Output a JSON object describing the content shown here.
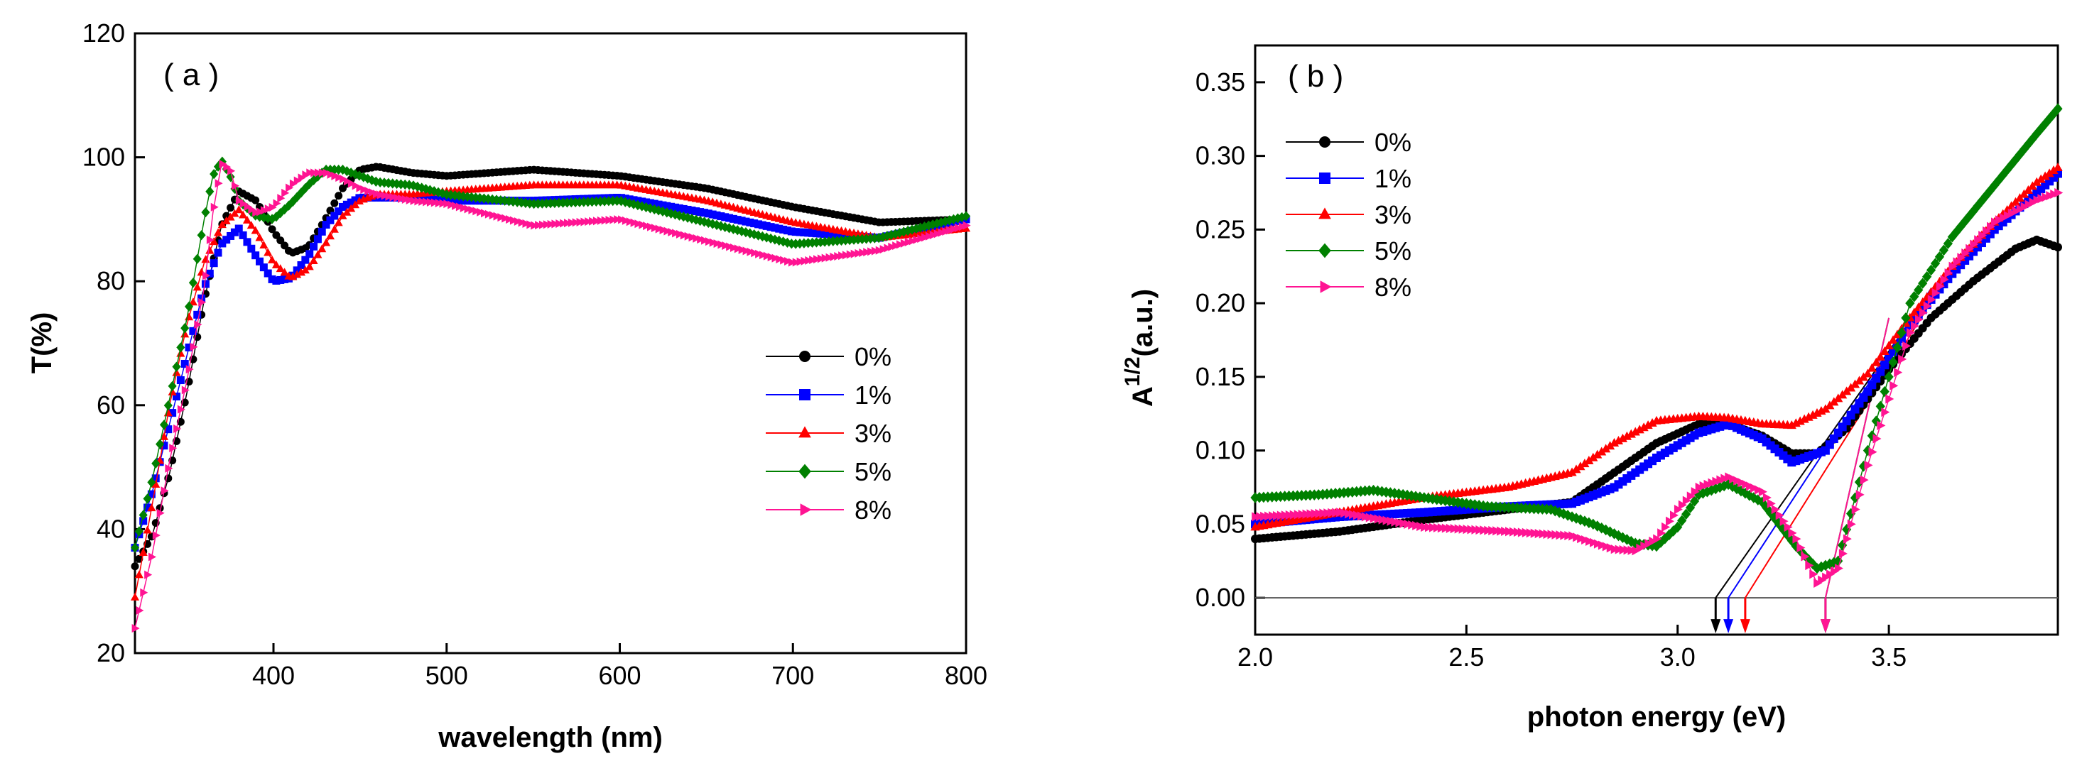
{
  "chart_data": [
    {
      "type": "scatter",
      "panel_label": "( a )",
      "xlabel": "wavelength (nm)",
      "ylabel": "T(%)",
      "xlim": [
        320,
        800
      ],
      "ylim": [
        20,
        120
      ],
      "xticks": [
        400,
        500,
        600,
        700,
        800
      ],
      "yticks": [
        20,
        40,
        60,
        80,
        100,
        120
      ],
      "legend_position": "right",
      "series": [
        {
          "name": "0%",
          "color": "#000000",
          "marker": "circle",
          "x": [
            320,
            330,
            340,
            350,
            360,
            370,
            380,
            390,
            400,
            410,
            420,
            430,
            440,
            450,
            460,
            480,
            500,
            550,
            600,
            650,
            700,
            750,
            800
          ],
          "y": [
            34,
            39,
            49,
            62,
            77,
            89,
            94.5,
            93,
            88,
            84.5,
            85.5,
            90,
            95,
            98,
            98.5,
            97.5,
            97,
            98,
            97,
            95,
            92,
            89.5,
            90
          ]
        },
        {
          "name": "1%",
          "color": "#0000ff",
          "marker": "square",
          "x": [
            320,
            330,
            340,
            350,
            360,
            370,
            380,
            390,
            400,
            410,
            420,
            430,
            440,
            450,
            460,
            480,
            500,
            550,
            600,
            650,
            700,
            750,
            800
          ],
          "y": [
            37,
            46,
            57,
            68,
            79,
            86,
            88.5,
            84,
            80,
            80.5,
            84,
            89,
            92,
            93.5,
            93.5,
            93.5,
            93,
            93,
            93.5,
            91,
            88,
            87,
            90
          ]
        },
        {
          "name": "3%",
          "color": "#ff0000",
          "marker": "triangle-up",
          "x": [
            320,
            330,
            340,
            350,
            360,
            370,
            380,
            390,
            400,
            410,
            420,
            430,
            440,
            450,
            460,
            480,
            500,
            550,
            600,
            650,
            700,
            750,
            800
          ],
          "y": [
            29,
            44,
            60,
            73,
            83,
            89,
            91.5,
            88,
            83,
            80.5,
            82,
            86,
            90.5,
            93,
            94,
            94,
            94.5,
            95.5,
            95.5,
            93,
            89.5,
            87,
            88.5
          ]
        },
        {
          "name": "5%",
          "color": "#008000",
          "marker": "diamond",
          "x": [
            320,
            330,
            340,
            350,
            360,
            365,
            370,
            375,
            380,
            390,
            400,
            410,
            420,
            430,
            440,
            450,
            460,
            480,
            500,
            550,
            600,
            650,
            700,
            750,
            800
          ],
          "y": [
            37,
            48,
            61,
            74,
            90,
            97,
            99.5,
            97,
            93,
            90.5,
            90,
            92.5,
            95.5,
            98,
            98,
            97,
            96,
            95.5,
            94,
            92.5,
            93,
            89.5,
            86,
            87,
            90.5
          ]
        },
        {
          "name": "8%",
          "color": "#ff1493",
          "marker": "triangle-right",
          "x": [
            320,
            330,
            340,
            350,
            360,
            365,
            370,
            375,
            380,
            390,
            400,
            410,
            420,
            430,
            440,
            450,
            460,
            480,
            500,
            550,
            600,
            650,
            700,
            750,
            800
          ],
          "y": [
            24,
            36,
            51,
            64,
            79,
            91,
            99,
            98,
            93,
            91,
            92,
            95.5,
            97.5,
            97.5,
            96.5,
            95,
            94,
            93,
            92.5,
            89,
            90,
            86.5,
            83,
            85,
            89
          ]
        }
      ]
    },
    {
      "type": "scatter",
      "panel_label": "( b )",
      "xlabel": "photon energy (eV)",
      "ylabel_main": "A",
      "ylabel_sup": "1/2",
      "ylabel_unit": "(a.u.)",
      "xlim": [
        2.0,
        3.9
      ],
      "ylim": [
        -0.025,
        0.375
      ],
      "xticks": [
        "2.0",
        "2.5",
        "3.0",
        "3.5"
      ],
      "yticks": [
        "0.00",
        "0.05",
        "0.10",
        "0.15",
        "0.20",
        "0.25",
        "0.30",
        "0.35"
      ],
      "legend_position": "top-left",
      "baseline_y": 0.0,
      "series": [
        {
          "name": "0%",
          "color": "#000000",
          "marker": "circle",
          "x": [
            2.0,
            2.2,
            2.4,
            2.6,
            2.75,
            2.85,
            2.95,
            3.05,
            3.1,
            3.2,
            3.27,
            3.33,
            3.4,
            3.5,
            3.6,
            3.7,
            3.8,
            3.85,
            3.9
          ],
          "y": [
            0.04,
            0.045,
            0.053,
            0.06,
            0.065,
            0.085,
            0.105,
            0.118,
            0.12,
            0.11,
            0.098,
            0.098,
            0.115,
            0.155,
            0.19,
            0.215,
            0.237,
            0.243,
            0.238
          ],
          "intercept_x": 3.09
        },
        {
          "name": "1%",
          "color": "#0000ff",
          "marker": "square",
          "x": [
            2.0,
            2.2,
            2.4,
            2.6,
            2.75,
            2.85,
            2.95,
            3.05,
            3.12,
            3.2,
            3.27,
            3.35,
            3.45,
            3.55,
            3.65,
            3.75,
            3.85,
            3.9
          ],
          "y": [
            0.05,
            0.055,
            0.058,
            0.062,
            0.064,
            0.075,
            0.095,
            0.112,
            0.118,
            0.108,
            0.092,
            0.1,
            0.14,
            0.185,
            0.22,
            0.25,
            0.275,
            0.288
          ],
          "intercept_x": 3.12
        },
        {
          "name": "3%",
          "color": "#ff0000",
          "marker": "triangle-up",
          "x": [
            2.0,
            2.2,
            2.4,
            2.6,
            2.75,
            2.85,
            2.95,
            3.05,
            3.12,
            3.2,
            3.27,
            3.35,
            3.45,
            3.55,
            3.65,
            3.75,
            3.85,
            3.9
          ],
          "y": [
            0.048,
            0.058,
            0.068,
            0.075,
            0.085,
            0.105,
            0.12,
            0.123,
            0.122,
            0.118,
            0.117,
            0.128,
            0.152,
            0.19,
            0.225,
            0.255,
            0.282,
            0.292
          ],
          "intercept_x": 3.16
        },
        {
          "name": "5%",
          "color": "#008000",
          "marker": "diamond",
          "x": [
            2.0,
            2.15,
            2.28,
            2.4,
            2.55,
            2.7,
            2.8,
            2.9,
            2.95,
            3.0,
            3.05,
            3.12,
            3.2,
            3.28,
            3.33,
            3.38,
            3.45,
            3.55,
            3.65,
            3.75,
            3.85,
            3.9
          ],
          "y": [
            0.068,
            0.07,
            0.073,
            0.068,
            0.062,
            0.06,
            0.05,
            0.037,
            0.035,
            0.048,
            0.07,
            0.077,
            0.065,
            0.035,
            0.02,
            0.025,
            0.1,
            0.2,
            0.245,
            0.28,
            0.315,
            0.332
          ],
          "intercept_x": 3.35
        },
        {
          "name": "8%",
          "color": "#ff1493",
          "marker": "triangle-right",
          "x": [
            2.0,
            2.2,
            2.4,
            2.6,
            2.75,
            2.85,
            2.9,
            2.95,
            3.0,
            3.05,
            3.12,
            3.2,
            3.28,
            3.33,
            3.38,
            3.45,
            3.55,
            3.65,
            3.75,
            3.85,
            3.9
          ],
          "y": [
            0.055,
            0.058,
            0.048,
            0.045,
            0.042,
            0.033,
            0.032,
            0.04,
            0.06,
            0.075,
            0.082,
            0.072,
            0.04,
            0.01,
            0.02,
            0.09,
            0.18,
            0.225,
            0.255,
            0.27,
            0.275
          ],
          "intercept_x": 3.35
        }
      ]
    }
  ]
}
